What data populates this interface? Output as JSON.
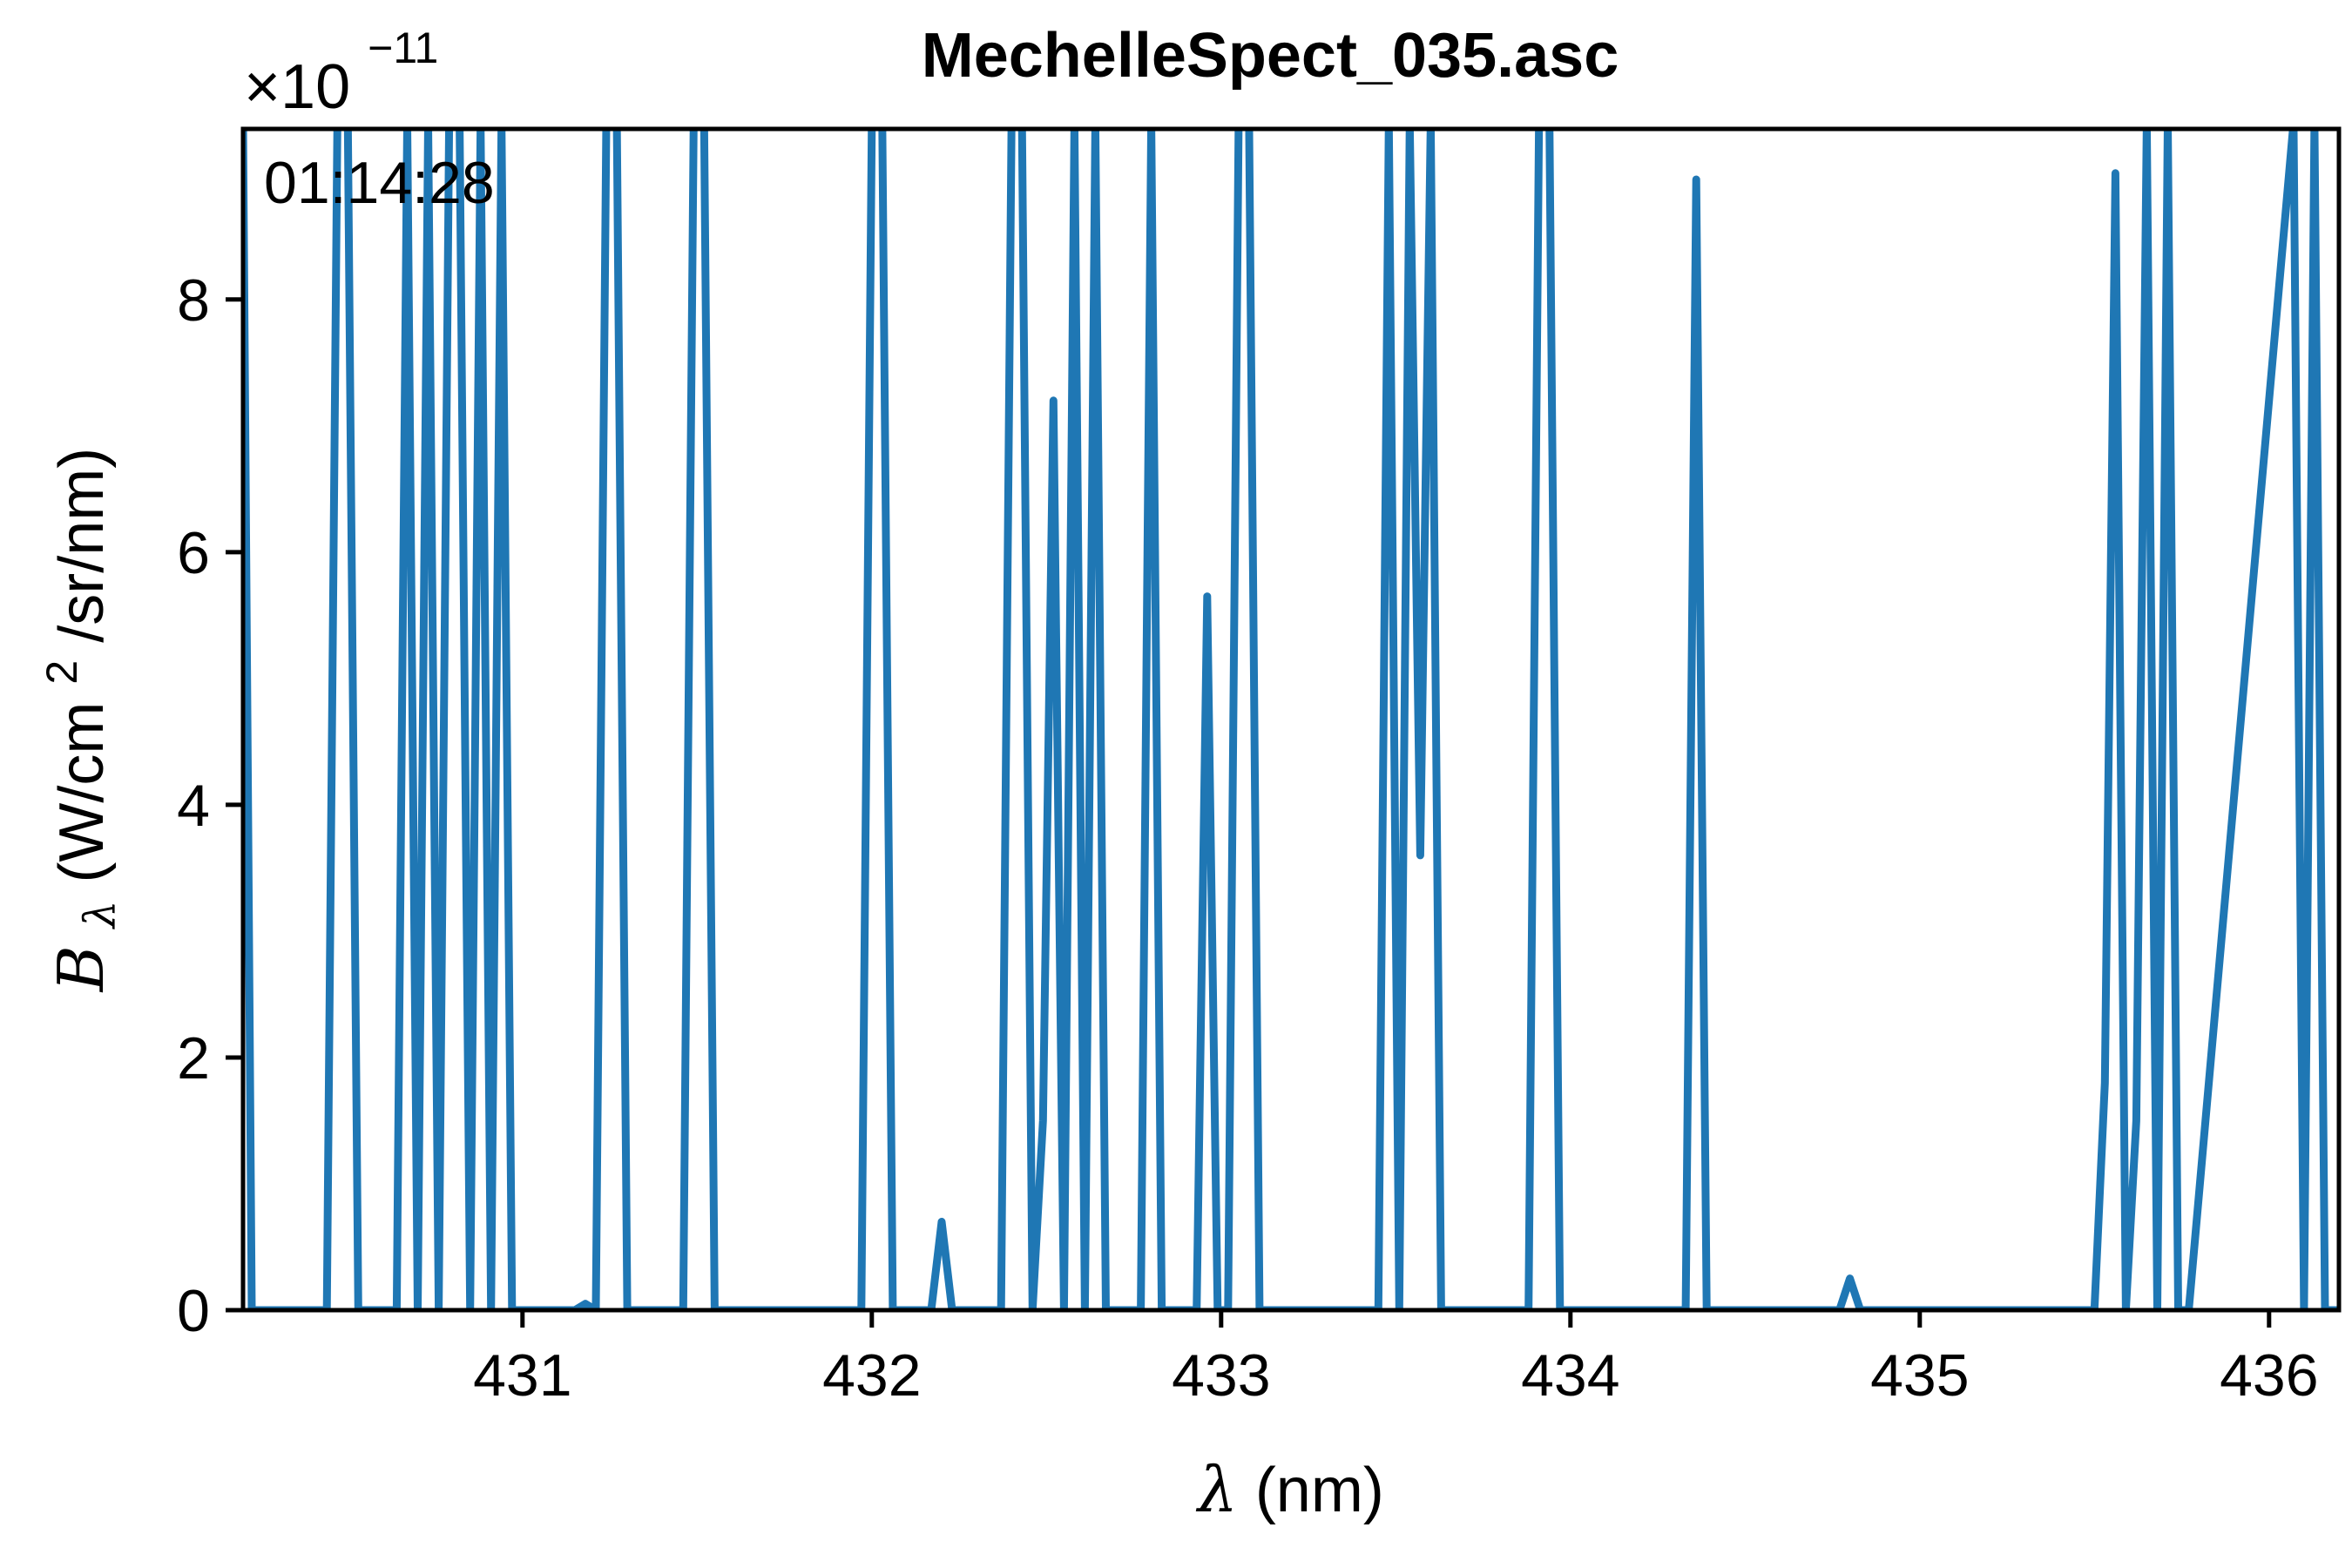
{
  "chart_data": {
    "type": "line",
    "title": "MechelleSpect_035.asc",
    "annotation": "01:14:28",
    "scale_factor": {
      "prefix": "×10",
      "exponent": "−11"
    },
    "xlabel": {
      "symbol": "λ",
      "unit": " (nm)"
    },
    "ylabel": {
      "symbol": "B",
      "subscript": "λ",
      "unit_before_sup": " (W/cm",
      "superscript": "2",
      "unit_after_sup": "/sr/nm)"
    },
    "xlim": [
      430.2,
      436.2
    ],
    "ylim": [
      0,
      9.35
    ],
    "x_ticks": [
      {
        "value": 431,
        "label": "431"
      },
      {
        "value": 432,
        "label": "432"
      },
      {
        "value": 433,
        "label": "433"
      },
      {
        "value": 434,
        "label": "434"
      },
      {
        "value": 435,
        "label": "435"
      },
      {
        "value": 436,
        "label": "436"
      }
    ],
    "y_ticks": [
      {
        "value": 0,
        "label": "0"
      },
      {
        "value": 2,
        "label": "2"
      },
      {
        "value": 4,
        "label": "4"
      },
      {
        "value": 6,
        "label": "6"
      },
      {
        "value": 8,
        "label": "8"
      }
    ],
    "grid": false,
    "series": [
      {
        "color": "#1f77b4",
        "x": [
          430.2,
          430.225,
          430.25,
          430.44,
          430.47,
          430.5,
          430.53,
          430.56,
          430.64,
          430.67,
          430.7,
          430.73,
          430.76,
          430.79,
          430.82,
          430.85,
          430.88,
          430.91,
          430.94,
          430.97,
          431.15,
          431.18,
          431.21,
          431.24,
          431.27,
          431.3,
          431.33,
          431.36,
          431.46,
          431.49,
          431.52,
          431.55,
          431.58,
          431.97,
          432.0,
          432.03,
          432.06,
          432.09,
          432.17,
          432.2,
          432.23,
          432.37,
          432.4,
          432.43,
          432.46,
          432.49,
          432.52,
          432.55,
          432.58,
          432.61,
          432.64,
          432.67,
          432.77,
          432.8,
          432.83,
          432.93,
          432.96,
          432.99,
          433.02,
          433.05,
          433.08,
          433.11,
          433.14,
          433.45,
          433.48,
          433.51,
          433.54,
          433.57,
          433.6,
          433.63,
          433.66,
          433.88,
          433.91,
          433.94,
          433.97,
          434.3,
          434.33,
          434.36,
          434.39,
          434.77,
          434.8,
          434.83,
          435.5,
          435.53,
          435.56,
          435.59,
          435.62,
          435.65,
          435.68,
          435.71,
          435.74,
          435.77,
          436.07,
          436.1,
          436.13,
          436.16,
          436.2
        ],
        "y": [
          9.4,
          0,
          0,
          0,
          9.4,
          9.4,
          0,
          0,
          0,
          9.4,
          0,
          9.4,
          0,
          9.4,
          9.4,
          0,
          9.4,
          0,
          9.4,
          0,
          0,
          0.05,
          0,
          9.4,
          9.4,
          0,
          0,
          0,
          0,
          9.4,
          9.4,
          0,
          0,
          0,
          9.4,
          9.4,
          0,
          0,
          0,
          0.7,
          0,
          0,
          9.4,
          9.4,
          0,
          1.5,
          7.2,
          0,
          9.4,
          0,
          9.4,
          0,
          0,
          9.4,
          0,
          0,
          5.65,
          0,
          0,
          9.4,
          9.4,
          0,
          0,
          0,
          9.4,
          0,
          9.4,
          3.6,
          9.4,
          0,
          0,
          0,
          9.4,
          9.4,
          0,
          0,
          0,
          8.95,
          0,
          0,
          0.25,
          0,
          0,
          1.8,
          9.0,
          0,
          1.5,
          9.4,
          0,
          9.4,
          0,
          0,
          9.4,
          0,
          9.4,
          0,
          0
        ]
      }
    ]
  }
}
